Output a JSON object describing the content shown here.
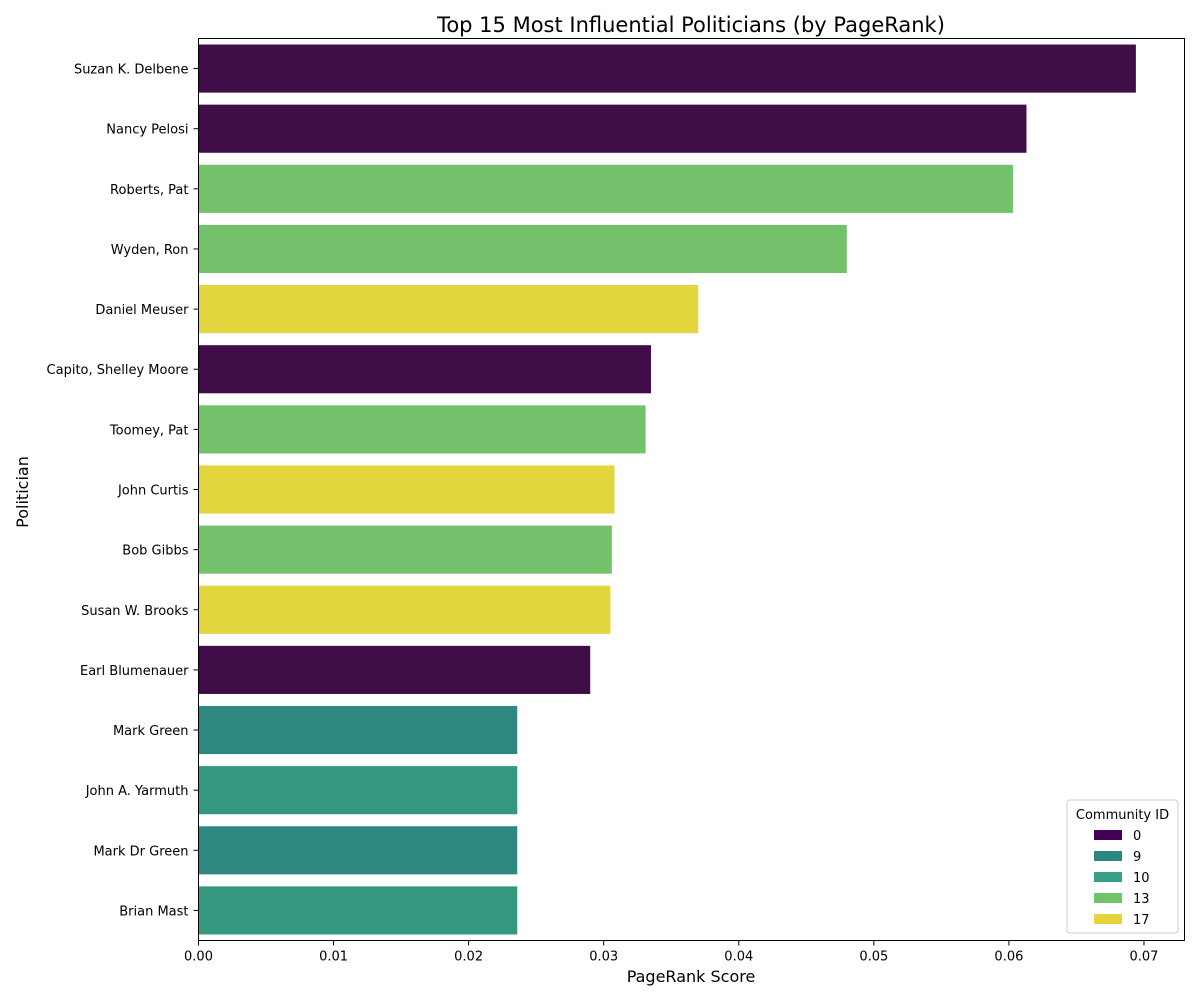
{
  "chart_data": {
    "type": "bar",
    "orientation": "horizontal",
    "title": "Top 15 Most Influential Politicians (by PageRank)",
    "xlabel": "PageRank Score",
    "ylabel": "Politician",
    "xlim": [
      0,
      0.073
    ],
    "x_ticks": [
      "0.00",
      "0.01",
      "0.02",
      "0.03",
      "0.04",
      "0.05",
      "0.06",
      "0.07"
    ],
    "x_tick_values": [
      0,
      0.01,
      0.02,
      0.03,
      0.04,
      0.05,
      0.06,
      0.07
    ],
    "grid": false,
    "categories": [
      "Suzan K. Delbene",
      "Nancy Pelosi",
      "Roberts, Pat",
      "Wyden, Ron",
      "Daniel Meuser",
      "Capito, Shelley Moore",
      "Toomey, Pat",
      "John Curtis",
      "Bob Gibbs",
      "Susan W. Brooks",
      "Earl Blumenauer",
      "Mark Green",
      "John A. Yarmuth",
      "Mark Dr Green",
      "Brian Mast"
    ],
    "values": [
      0.0694,
      0.0613,
      0.0603,
      0.048,
      0.037,
      0.0335,
      0.0331,
      0.0308,
      0.0306,
      0.0305,
      0.029,
      0.0236,
      0.0236,
      0.0236,
      0.0236
    ],
    "community": [
      "0",
      "0",
      "13",
      "13",
      "17",
      "0",
      "13",
      "17",
      "13",
      "17",
      "0",
      "9",
      "10",
      "9",
      "10"
    ],
    "legend": {
      "title": "Community ID",
      "placement": "lower-right",
      "entries": [
        {
          "label": "0",
          "color": "#440154"
        },
        {
          "label": "9",
          "color": "#2a8880"
        },
        {
          "label": "10",
          "color": "#35a083"
        },
        {
          "label": "13",
          "color": "#74c16b"
        },
        {
          "label": "17",
          "color": "#e5d53a"
        }
      ]
    },
    "bar_colors": [
      "#400d48",
      "#400d48",
      "#74c16b",
      "#74c16b",
      "#e2d53d",
      "#400d48",
      "#74c16b",
      "#e2d53d",
      "#74c16b",
      "#e2d53d",
      "#400d48",
      "#2e8880",
      "#34987e",
      "#2e8880",
      "#34987e"
    ]
  }
}
